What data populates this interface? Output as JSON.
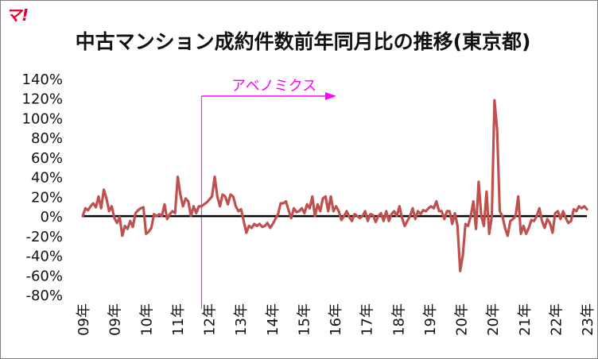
{
  "logo_text": "マ!",
  "chart_data": {
    "type": "line",
    "title": "中古マンション成約件数前年同月比の推移(東京都)",
    "xlabel": "",
    "ylabel": "",
    "ylim": [
      -80,
      140
    ],
    "y_ticks": [
      -80,
      -60,
      -40,
      -20,
      0,
      20,
      40,
      60,
      80,
      100,
      120,
      140
    ],
    "y_tick_labels": [
      "-80%",
      "-60%",
      "-40%",
      "-20%",
      "0%",
      "20%",
      "40%",
      "60%",
      "80%",
      "100%",
      "120%",
      "140%"
    ],
    "x_tick_labels": [
      "09年",
      "09年",
      "10年",
      "11年",
      "12年",
      "13年",
      "14年",
      "15年",
      "16年",
      "17年",
      "18年",
      "19年",
      "20年",
      "20年",
      "21年",
      "22年",
      "23年"
    ],
    "grid": false,
    "legend": "none",
    "line_color": "#c0504d",
    "zero_line_color": "#000000",
    "annotation": {
      "text": "アベノミクス",
      "color": "#ff00ff",
      "x_index": 45
    },
    "series": [
      {
        "values": [
          0,
          8,
          6,
          10,
          13,
          9,
          20,
          8,
          27,
          18,
          5,
          10,
          -2,
          -7,
          -1,
          -20,
          -10,
          -13,
          -5,
          -11,
          3,
          6,
          8,
          9,
          -18,
          -16,
          -12,
          2,
          0,
          2,
          0,
          12,
          -3,
          2,
          5,
          3,
          40,
          22,
          10,
          18,
          15,
          0,
          10,
          3,
          10,
          10,
          12,
          14,
          17,
          20,
          40,
          20,
          10,
          22,
          20,
          12,
          22,
          20,
          10,
          5,
          7,
          -5,
          -17,
          -10,
          -12,
          -8,
          -10,
          -8,
          -11,
          -10,
          -7,
          -12,
          -8,
          -3,
          2,
          13,
          13,
          15,
          6,
          -2,
          8,
          4,
          5,
          8,
          3,
          12,
          8,
          20,
          0,
          12,
          5,
          18,
          20,
          5,
          20,
          5,
          10,
          5,
          -4,
          0,
          5,
          -1,
          -5,
          2,
          0,
          -2,
          0,
          5,
          -5,
          2,
          1,
          -6,
          0,
          3,
          -5,
          5,
          -5,
          2,
          5,
          0,
          10,
          -2,
          -10,
          -5,
          0,
          8,
          -3,
          5,
          2,
          6,
          5,
          8,
          10,
          8,
          15,
          5,
          5,
          -3,
          5,
          5,
          -8,
          3,
          -10,
          -56,
          -40,
          -8,
          -10,
          0,
          15,
          -13,
          35,
          0,
          -10,
          25,
          -18,
          0,
          118,
          88,
          5,
          0,
          -12,
          -20,
          -5,
          -3,
          0,
          20,
          -18,
          -10,
          -18,
          -12,
          -4,
          -5,
          0,
          8,
          -5,
          -12,
          -3,
          -7,
          -17,
          3,
          5,
          -3,
          5,
          -2,
          -7,
          -5,
          7,
          5,
          10,
          8,
          10,
          7
        ]
      }
    ]
  }
}
